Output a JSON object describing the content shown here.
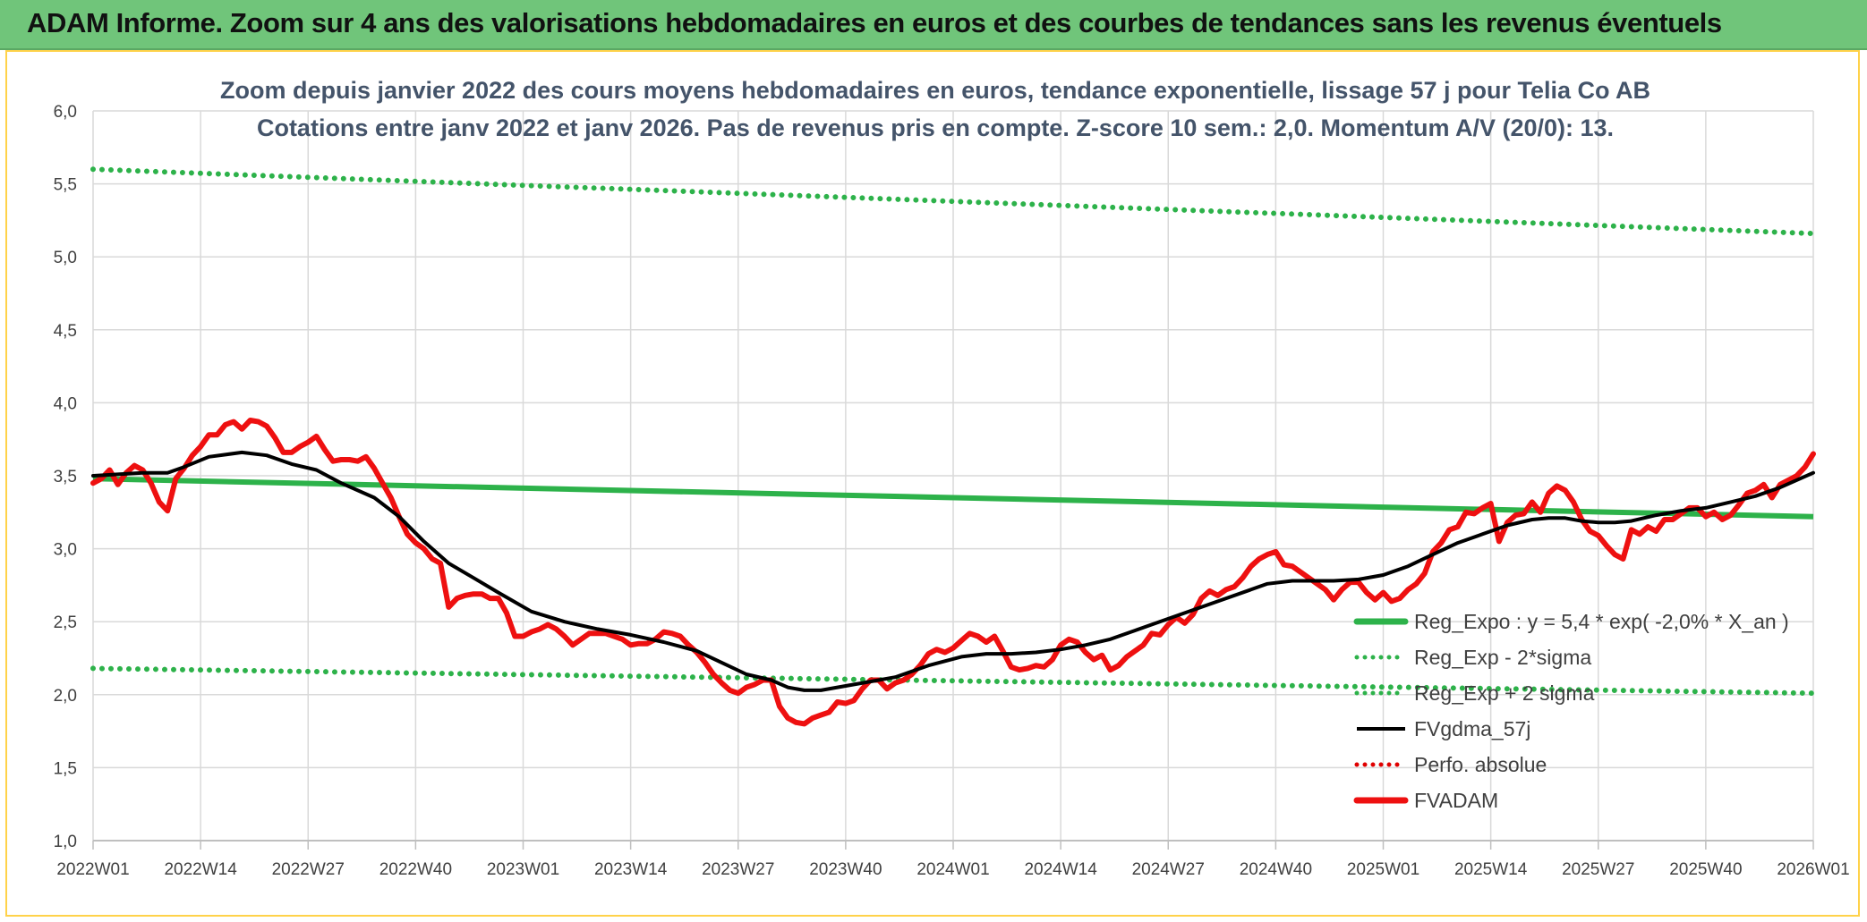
{
  "banner": {
    "title": "ADAM Informe. Zoom sur 4 ans des valorisations hebdomadaires en euros et des courbes de tendances sans les revenus éventuels"
  },
  "colors": {
    "banner_bg": "#70c57a",
    "reg_expo": "#2db24a",
    "bands": "#2db24a",
    "fvgdma": "#000000",
    "perfo": "#e00000",
    "fvadam": "#ee1010",
    "grid": "#d9d9d9"
  },
  "chart_data": {
    "type": "line",
    "title_line1": "Zoom depuis janvier 2022 des cours moyens hebdomadaires en euros, tendance exponentielle, lissage 57 j pour Telia Co AB",
    "title_line2": "Cotations entre janv 2022 et janv 2026. Pas de revenus pris en compte. Z-score 10 sem.: 2,0. Momentum A/V (20/0): 13.",
    "x_tick_labels": [
      "2022W01",
      "2022W14",
      "2022W27",
      "2022W40",
      "2023W01",
      "2023W14",
      "2023W27",
      "2023W40",
      "2024W01",
      "2024W14",
      "2024W27",
      "2024W40",
      "2025W01",
      "2025W14",
      "2025W27",
      "2025W40",
      "2026W01"
    ],
    "x_range_weeks": [
      0,
      208
    ],
    "y_tick_labels": [
      "1,0",
      "1,5",
      "2,0",
      "2,5",
      "3,0",
      "3,5",
      "4,0",
      "4,5",
      "5,0",
      "5,5",
      "6,0"
    ],
    "ylim": [
      1.0,
      6.0
    ],
    "legend": [
      {
        "name": "Reg_Expo : y = 5,4 * exp( -2,0% *  X_an )",
        "style": "solid-thick",
        "color": "#2db24a"
      },
      {
        "name": "Reg_Exp - 2*sigma",
        "style": "dotted",
        "color": "#2db24a"
      },
      {
        "name": "Reg_Exp + 2 sigma",
        "style": "dotted",
        "color": "#2db24a"
      },
      {
        "name": "FVgdma_57j",
        "style": "solid",
        "color": "#000000"
      },
      {
        "name": "Perfo. absolue",
        "style": "dotted",
        "color": "#e00000"
      },
      {
        "name": "FVADAM",
        "style": "solid-thick",
        "color": "#ee1010"
      }
    ],
    "series": [
      {
        "name": "Reg_Expo",
        "start": 3.48,
        "end": 3.22
      },
      {
        "name": "Reg_Exp - 2*sigma",
        "start": 2.18,
        "end": 2.01
      },
      {
        "name": "Reg_Exp + 2 sigma",
        "start": 5.6,
        "end": 5.16
      },
      {
        "name": "FVgdma_57j",
        "points": [
          [
            0,
            3.5
          ],
          [
            6,
            3.52
          ],
          [
            9,
            3.52
          ],
          [
            11,
            3.56
          ],
          [
            14,
            3.63
          ],
          [
            18,
            3.66
          ],
          [
            21,
            3.64
          ],
          [
            24,
            3.58
          ],
          [
            27,
            3.54
          ],
          [
            30,
            3.45
          ],
          [
            34,
            3.35
          ],
          [
            37,
            3.22
          ],
          [
            40,
            3.05
          ],
          [
            43,
            2.9
          ],
          [
            46,
            2.8
          ],
          [
            49,
            2.7
          ],
          [
            53,
            2.57
          ],
          [
            57,
            2.5
          ],
          [
            61,
            2.45
          ],
          [
            65,
            2.41
          ],
          [
            69,
            2.36
          ],
          [
            73,
            2.3
          ],
          [
            76,
            2.22
          ],
          [
            79,
            2.14
          ],
          [
            82,
            2.1
          ],
          [
            84,
            2.05
          ],
          [
            86,
            2.03
          ],
          [
            88,
            2.03
          ],
          [
            91,
            2.06
          ],
          [
            94,
            2.09
          ],
          [
            97,
            2.12
          ],
          [
            101,
            2.2
          ],
          [
            105,
            2.26
          ],
          [
            108,
            2.28
          ],
          [
            111,
            2.28
          ],
          [
            114,
            2.29
          ],
          [
            117,
            2.31
          ],
          [
            120,
            2.34
          ],
          [
            123,
            2.38
          ],
          [
            126,
            2.44
          ],
          [
            130,
            2.52
          ],
          [
            134,
            2.6
          ],
          [
            137,
            2.66
          ],
          [
            140,
            2.72
          ],
          [
            142,
            2.76
          ],
          [
            145,
            2.78
          ],
          [
            147,
            2.78
          ],
          [
            150,
            2.78
          ],
          [
            153,
            2.79
          ],
          [
            156,
            2.82
          ],
          [
            159,
            2.88
          ],
          [
            162,
            2.96
          ],
          [
            165,
            3.04
          ],
          [
            168,
            3.1
          ],
          [
            171,
            3.16
          ],
          [
            174,
            3.2
          ],
          [
            176,
            3.21
          ],
          [
            178,
            3.21
          ],
          [
            180,
            3.19
          ],
          [
            182,
            3.18
          ],
          [
            184,
            3.18
          ],
          [
            186,
            3.19
          ],
          [
            189,
            3.23
          ],
          [
            192,
            3.26
          ],
          [
            195,
            3.28
          ],
          [
            198,
            3.32
          ],
          [
            201,
            3.36
          ],
          [
            204,
            3.42
          ],
          [
            208,
            3.52
          ]
        ]
      },
      {
        "name": "FVADAM",
        "points": [
          [
            0,
            3.45
          ],
          [
            1,
            3.48
          ],
          [
            2,
            3.54
          ],
          [
            3,
            3.44
          ],
          [
            4,
            3.52
          ],
          [
            5,
            3.57
          ],
          [
            6,
            3.54
          ],
          [
            7,
            3.45
          ],
          [
            8,
            3.32
          ],
          [
            9,
            3.26
          ],
          [
            10,
            3.48
          ],
          [
            11,
            3.55
          ],
          [
            12,
            3.64
          ],
          [
            13,
            3.7
          ],
          [
            14,
            3.78
          ],
          [
            15,
            3.78
          ],
          [
            16,
            3.85
          ],
          [
            17,
            3.87
          ],
          [
            18,
            3.82
          ],
          [
            19,
            3.88
          ],
          [
            20,
            3.87
          ],
          [
            21,
            3.84
          ],
          [
            22,
            3.76
          ],
          [
            23,
            3.66
          ],
          [
            24,
            3.66
          ],
          [
            25,
            3.7
          ],
          [
            26,
            3.73
          ],
          [
            27,
            3.77
          ],
          [
            28,
            3.68
          ],
          [
            29,
            3.6
          ],
          [
            30,
            3.61
          ],
          [
            31,
            3.61
          ],
          [
            32,
            3.6
          ],
          [
            33,
            3.63
          ],
          [
            34,
            3.55
          ],
          [
            35,
            3.45
          ],
          [
            36,
            3.35
          ],
          [
            37,
            3.22
          ],
          [
            38,
            3.1
          ],
          [
            39,
            3.04
          ],
          [
            40,
            3.0
          ],
          [
            41,
            2.93
          ],
          [
            42,
            2.9
          ],
          [
            43,
            2.6
          ],
          [
            44,
            2.66
          ],
          [
            45,
            2.68
          ],
          [
            46,
            2.69
          ],
          [
            47,
            2.69
          ],
          [
            48,
            2.66
          ],
          [
            49,
            2.66
          ],
          [
            50,
            2.56
          ],
          [
            51,
            2.4
          ],
          [
            52,
            2.4
          ],
          [
            53,
            2.43
          ],
          [
            54,
            2.45
          ],
          [
            55,
            2.48
          ],
          [
            56,
            2.45
          ],
          [
            57,
            2.4
          ],
          [
            58,
            2.34
          ],
          [
            59,
            2.38
          ],
          [
            60,
            2.42
          ],
          [
            61,
            2.42
          ],
          [
            62,
            2.42
          ],
          [
            63,
            2.4
          ],
          [
            64,
            2.38
          ],
          [
            65,
            2.34
          ],
          [
            66,
            2.35
          ],
          [
            67,
            2.35
          ],
          [
            68,
            2.38
          ],
          [
            69,
            2.43
          ],
          [
            70,
            2.42
          ],
          [
            71,
            2.4
          ],
          [
            72,
            2.34
          ],
          [
            73,
            2.29
          ],
          [
            74,
            2.22
          ],
          [
            75,
            2.14
          ],
          [
            76,
            2.08
          ],
          [
            77,
            2.03
          ],
          [
            78,
            2.01
          ],
          [
            79,
            2.05
          ],
          [
            80,
            2.07
          ],
          [
            81,
            2.1
          ],
          [
            82,
            2.1
          ],
          [
            83,
            1.92
          ],
          [
            84,
            1.84
          ],
          [
            85,
            1.81
          ],
          [
            86,
            1.8
          ],
          [
            87,
            1.84
          ],
          [
            88,
            1.86
          ],
          [
            89,
            1.88
          ],
          [
            90,
            1.95
          ],
          [
            91,
            1.94
          ],
          [
            92,
            1.96
          ],
          [
            93,
            2.04
          ],
          [
            94,
            2.1
          ],
          [
            95,
            2.1
          ],
          [
            96,
            2.04
          ],
          [
            97,
            2.08
          ],
          [
            98,
            2.1
          ],
          [
            99,
            2.14
          ],
          [
            100,
            2.2
          ],
          [
            101,
            2.28
          ],
          [
            102,
            2.31
          ],
          [
            103,
            2.29
          ],
          [
            104,
            2.32
          ],
          [
            105,
            2.37
          ],
          [
            106,
            2.42
          ],
          [
            107,
            2.4
          ],
          [
            108,
            2.36
          ],
          [
            109,
            2.4
          ],
          [
            110,
            2.3
          ],
          [
            111,
            2.19
          ],
          [
            112,
            2.17
          ],
          [
            113,
            2.18
          ],
          [
            114,
            2.2
          ],
          [
            115,
            2.19
          ],
          [
            116,
            2.24
          ],
          [
            117,
            2.34
          ],
          [
            118,
            2.38
          ],
          [
            119,
            2.36
          ],
          [
            120,
            2.29
          ],
          [
            121,
            2.24
          ],
          [
            122,
            2.27
          ],
          [
            123,
            2.17
          ],
          [
            124,
            2.2
          ],
          [
            125,
            2.26
          ],
          [
            126,
            2.3
          ],
          [
            127,
            2.34
          ],
          [
            128,
            2.42
          ],
          [
            129,
            2.41
          ],
          [
            130,
            2.48
          ],
          [
            131,
            2.53
          ],
          [
            132,
            2.49
          ],
          [
            133,
            2.55
          ],
          [
            134,
            2.66
          ],
          [
            135,
            2.71
          ],
          [
            136,
            2.68
          ],
          [
            137,
            2.72
          ],
          [
            138,
            2.74
          ],
          [
            139,
            2.8
          ],
          [
            140,
            2.88
          ],
          [
            141,
            2.93
          ],
          [
            142,
            2.96
          ],
          [
            143,
            2.98
          ],
          [
            144,
            2.89
          ],
          [
            145,
            2.88
          ],
          [
            146,
            2.84
          ],
          [
            147,
            2.8
          ],
          [
            148,
            2.76
          ],
          [
            149,
            2.72
          ],
          [
            150,
            2.65
          ],
          [
            151,
            2.72
          ],
          [
            152,
            2.77
          ],
          [
            153,
            2.77
          ],
          [
            154,
            2.7
          ],
          [
            155,
            2.65
          ],
          [
            156,
            2.7
          ],
          [
            157,
            2.64
          ],
          [
            158,
            2.66
          ],
          [
            159,
            2.72
          ],
          [
            160,
            2.76
          ],
          [
            161,
            2.83
          ],
          [
            162,
            2.98
          ],
          [
            163,
            3.04
          ],
          [
            164,
            3.13
          ],
          [
            165,
            3.15
          ],
          [
            166,
            3.25
          ],
          [
            167,
            3.24
          ],
          [
            168,
            3.28
          ],
          [
            169,
            3.31
          ],
          [
            170,
            3.05
          ],
          [
            171,
            3.18
          ],
          [
            172,
            3.23
          ],
          [
            173,
            3.24
          ],
          [
            174,
            3.32
          ],
          [
            175,
            3.25
          ],
          [
            176,
            3.38
          ],
          [
            177,
            3.43
          ],
          [
            178,
            3.4
          ],
          [
            179,
            3.32
          ],
          [
            180,
            3.2
          ],
          [
            181,
            3.12
          ],
          [
            182,
            3.09
          ],
          [
            183,
            3.02
          ],
          [
            184,
            2.96
          ],
          [
            185,
            2.93
          ],
          [
            186,
            3.13
          ],
          [
            187,
            3.1
          ],
          [
            188,
            3.15
          ],
          [
            189,
            3.12
          ],
          [
            190,
            3.2
          ],
          [
            191,
            3.2
          ],
          [
            192,
            3.24
          ],
          [
            193,
            3.28
          ],
          [
            194,
            3.28
          ],
          [
            195,
            3.22
          ],
          [
            196,
            3.25
          ],
          [
            197,
            3.2
          ],
          [
            198,
            3.23
          ],
          [
            199,
            3.3
          ],
          [
            200,
            3.38
          ],
          [
            201,
            3.4
          ],
          [
            202,
            3.44
          ],
          [
            203,
            3.35
          ],
          [
            204,
            3.44
          ],
          [
            205,
            3.47
          ],
          [
            206,
            3.5
          ],
          [
            207,
            3.56
          ],
          [
            208,
            3.65
          ]
        ]
      }
    ]
  }
}
